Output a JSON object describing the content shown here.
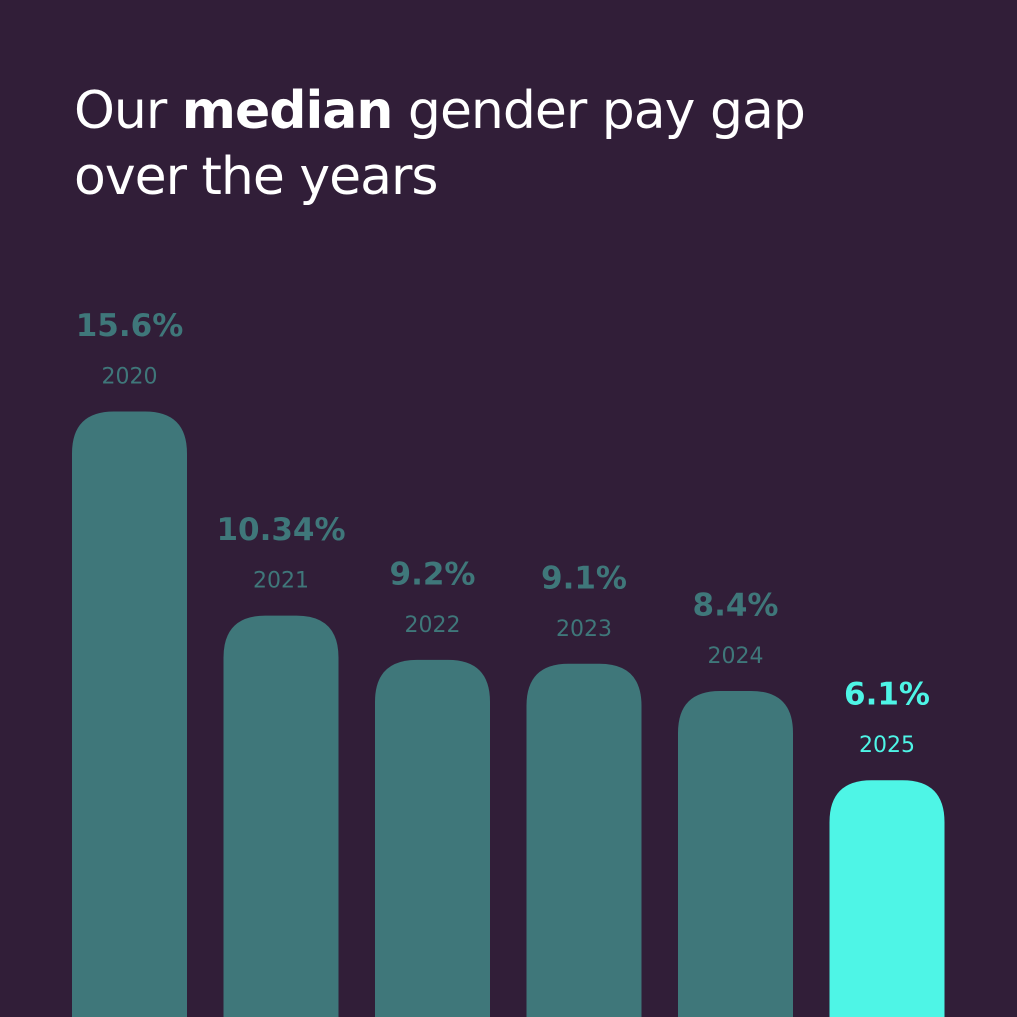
{
  "chart_data": {
    "type": "bar",
    "title": [
      {
        "text": "Our "
      },
      {
        "text": "median",
        "bold": true
      },
      {
        "text": " gender pay gap over the years"
      }
    ],
    "categories": [
      "2020",
      "2021",
      "2022",
      "2023",
      "2024",
      "2025"
    ],
    "values": [
      15.6,
      10.34,
      9.2,
      9.1,
      8.4,
      6.1
    ],
    "value_labels": [
      "15.6%",
      "10.34%",
      "9.2%",
      "9.1%",
      "8.4%",
      "6.1%"
    ],
    "colors": [
      "#3f777a",
      "#3f777a",
      "#3f777a",
      "#3f777a",
      "#3f777a",
      "#4ef5e6"
    ],
    "ylim": [
      0,
      26.2
    ]
  }
}
